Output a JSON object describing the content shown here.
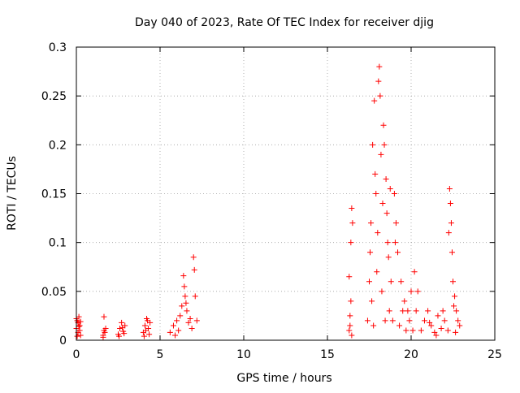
{
  "chart_data": {
    "type": "scatter",
    "title": "Day 040 of 2023, Rate Of TEC Index for receiver djig",
    "xlabel": "GPS time / hours",
    "ylabel": "ROTI / TECUs",
    "xlim": [
      0,
      25
    ],
    "ylim": [
      0,
      0.3
    ],
    "xticks": [
      0,
      5,
      10,
      15,
      20,
      25
    ],
    "yticks": [
      0,
      0.05,
      0.1,
      0.15,
      0.2,
      0.25,
      0.3
    ],
    "xtick_labels": [
      "0",
      "5",
      "10",
      "15",
      "20",
      "25"
    ],
    "ytick_labels": [
      "0",
      "0.05",
      "0.1",
      "0.15",
      "0.2",
      "0.25",
      "0.3"
    ],
    "grid": true,
    "marker": "plus",
    "color": "#ff0000",
    "series": [
      {
        "name": "ROTI",
        "points": [
          [
            0.0,
            0.012
          ],
          [
            0.05,
            0.02
          ],
          [
            0.1,
            0.008
          ],
          [
            0.15,
            0.024
          ],
          [
            0.2,
            0.015
          ],
          [
            0.25,
            0.005
          ],
          [
            0.0,
            0.022
          ],
          [
            0.1,
            0.018
          ],
          [
            0.2,
            0.01
          ],
          [
            0.05,
            0.004
          ],
          [
            0.15,
            0.014
          ],
          [
            0.25,
            0.019
          ],
          [
            1.6,
            0.005
          ],
          [
            1.65,
            0.01
          ],
          [
            1.7,
            0.008
          ],
          [
            1.65,
            0.024
          ],
          [
            1.75,
            0.012
          ],
          [
            1.6,
            0.003
          ],
          [
            2.5,
            0.006
          ],
          [
            2.6,
            0.012
          ],
          [
            2.7,
            0.018
          ],
          [
            2.8,
            0.009
          ],
          [
            2.9,
            0.015
          ],
          [
            2.55,
            0.004
          ],
          [
            2.75,
            0.013
          ],
          [
            2.85,
            0.007
          ],
          [
            4.0,
            0.008
          ],
          [
            4.1,
            0.015
          ],
          [
            4.2,
            0.022
          ],
          [
            4.3,
            0.012
          ],
          [
            4.4,
            0.018
          ],
          [
            4.05,
            0.004
          ],
          [
            4.25,
            0.02
          ],
          [
            4.35,
            0.006
          ],
          [
            4.15,
            0.01
          ],
          [
            5.6,
            0.008
          ],
          [
            5.8,
            0.015
          ],
          [
            6.0,
            0.02
          ],
          [
            6.2,
            0.025
          ],
          [
            6.3,
            0.035
          ],
          [
            6.4,
            0.066
          ],
          [
            6.5,
            0.045
          ],
          [
            6.6,
            0.03
          ],
          [
            6.8,
            0.022
          ],
          [
            6.9,
            0.012
          ],
          [
            7.0,
            0.085
          ],
          [
            7.05,
            0.072
          ],
          [
            7.1,
            0.045
          ],
          [
            7.2,
            0.02
          ],
          [
            6.1,
            0.01
          ],
          [
            6.45,
            0.055
          ],
          [
            6.7,
            0.018
          ],
          [
            5.9,
            0.005
          ],
          [
            6.55,
            0.038
          ],
          [
            16.3,
            0.01
          ],
          [
            16.35,
            0.025
          ],
          [
            16.4,
            0.04
          ],
          [
            16.45,
            0.135
          ],
          [
            16.5,
            0.12
          ],
          [
            16.4,
            0.1
          ],
          [
            16.3,
            0.065
          ],
          [
            16.45,
            0.005
          ],
          [
            16.35,
            0.015
          ],
          [
            17.4,
            0.02
          ],
          [
            17.5,
            0.06
          ],
          [
            17.6,
            0.12
          ],
          [
            17.7,
            0.2
          ],
          [
            17.8,
            0.245
          ],
          [
            17.9,
            0.15
          ],
          [
            18.0,
            0.11
          ],
          [
            18.05,
            0.265
          ],
          [
            18.1,
            0.28
          ],
          [
            18.15,
            0.25
          ],
          [
            18.2,
            0.19
          ],
          [
            18.3,
            0.14
          ],
          [
            18.4,
            0.2
          ],
          [
            18.5,
            0.165
          ],
          [
            18.6,
            0.1
          ],
          [
            18.8,
            0.06
          ],
          [
            19.0,
            0.15
          ],
          [
            19.1,
            0.12
          ],
          [
            19.2,
            0.09
          ],
          [
            19.4,
            0.06
          ],
          [
            19.6,
            0.04
          ],
          [
            19.8,
            0.03
          ],
          [
            20.0,
            0.05
          ],
          [
            20.2,
            0.07
          ],
          [
            20.4,
            0.05
          ],
          [
            17.55,
            0.09
          ],
          [
            17.65,
            0.04
          ],
          [
            17.75,
            0.015
          ],
          [
            17.95,
            0.07
          ],
          [
            18.25,
            0.05
          ],
          [
            18.45,
            0.02
          ],
          [
            18.7,
            0.03
          ],
          [
            18.9,
            0.02
          ],
          [
            19.3,
            0.015
          ],
          [
            19.5,
            0.03
          ],
          [
            19.7,
            0.01
          ],
          [
            19.9,
            0.02
          ],
          [
            20.1,
            0.01
          ],
          [
            20.3,
            0.03
          ],
          [
            17.85,
            0.17
          ],
          [
            18.35,
            0.22
          ],
          [
            18.55,
            0.13
          ],
          [
            18.65,
            0.085
          ],
          [
            19.05,
            0.1
          ],
          [
            18.75,
            0.155
          ],
          [
            20.6,
            0.01
          ],
          [
            20.8,
            0.02
          ],
          [
            21.0,
            0.03
          ],
          [
            21.2,
            0.015
          ],
          [
            21.4,
            0.008
          ],
          [
            21.6,
            0.025
          ],
          [
            21.8,
            0.012
          ],
          [
            21.9,
            0.03
          ],
          [
            22.0,
            0.02
          ],
          [
            22.2,
            0.01
          ],
          [
            22.3,
            0.155
          ],
          [
            22.35,
            0.14
          ],
          [
            22.4,
            0.12
          ],
          [
            22.45,
            0.09
          ],
          [
            22.5,
            0.06
          ],
          [
            22.6,
            0.045
          ],
          [
            22.7,
            0.03
          ],
          [
            22.8,
            0.02
          ],
          [
            22.9,
            0.015
          ],
          [
            22.25,
            0.11
          ],
          [
            22.55,
            0.035
          ],
          [
            21.5,
            0.005
          ],
          [
            21.1,
            0.018
          ],
          [
            22.65,
            0.008
          ]
        ]
      }
    ]
  }
}
